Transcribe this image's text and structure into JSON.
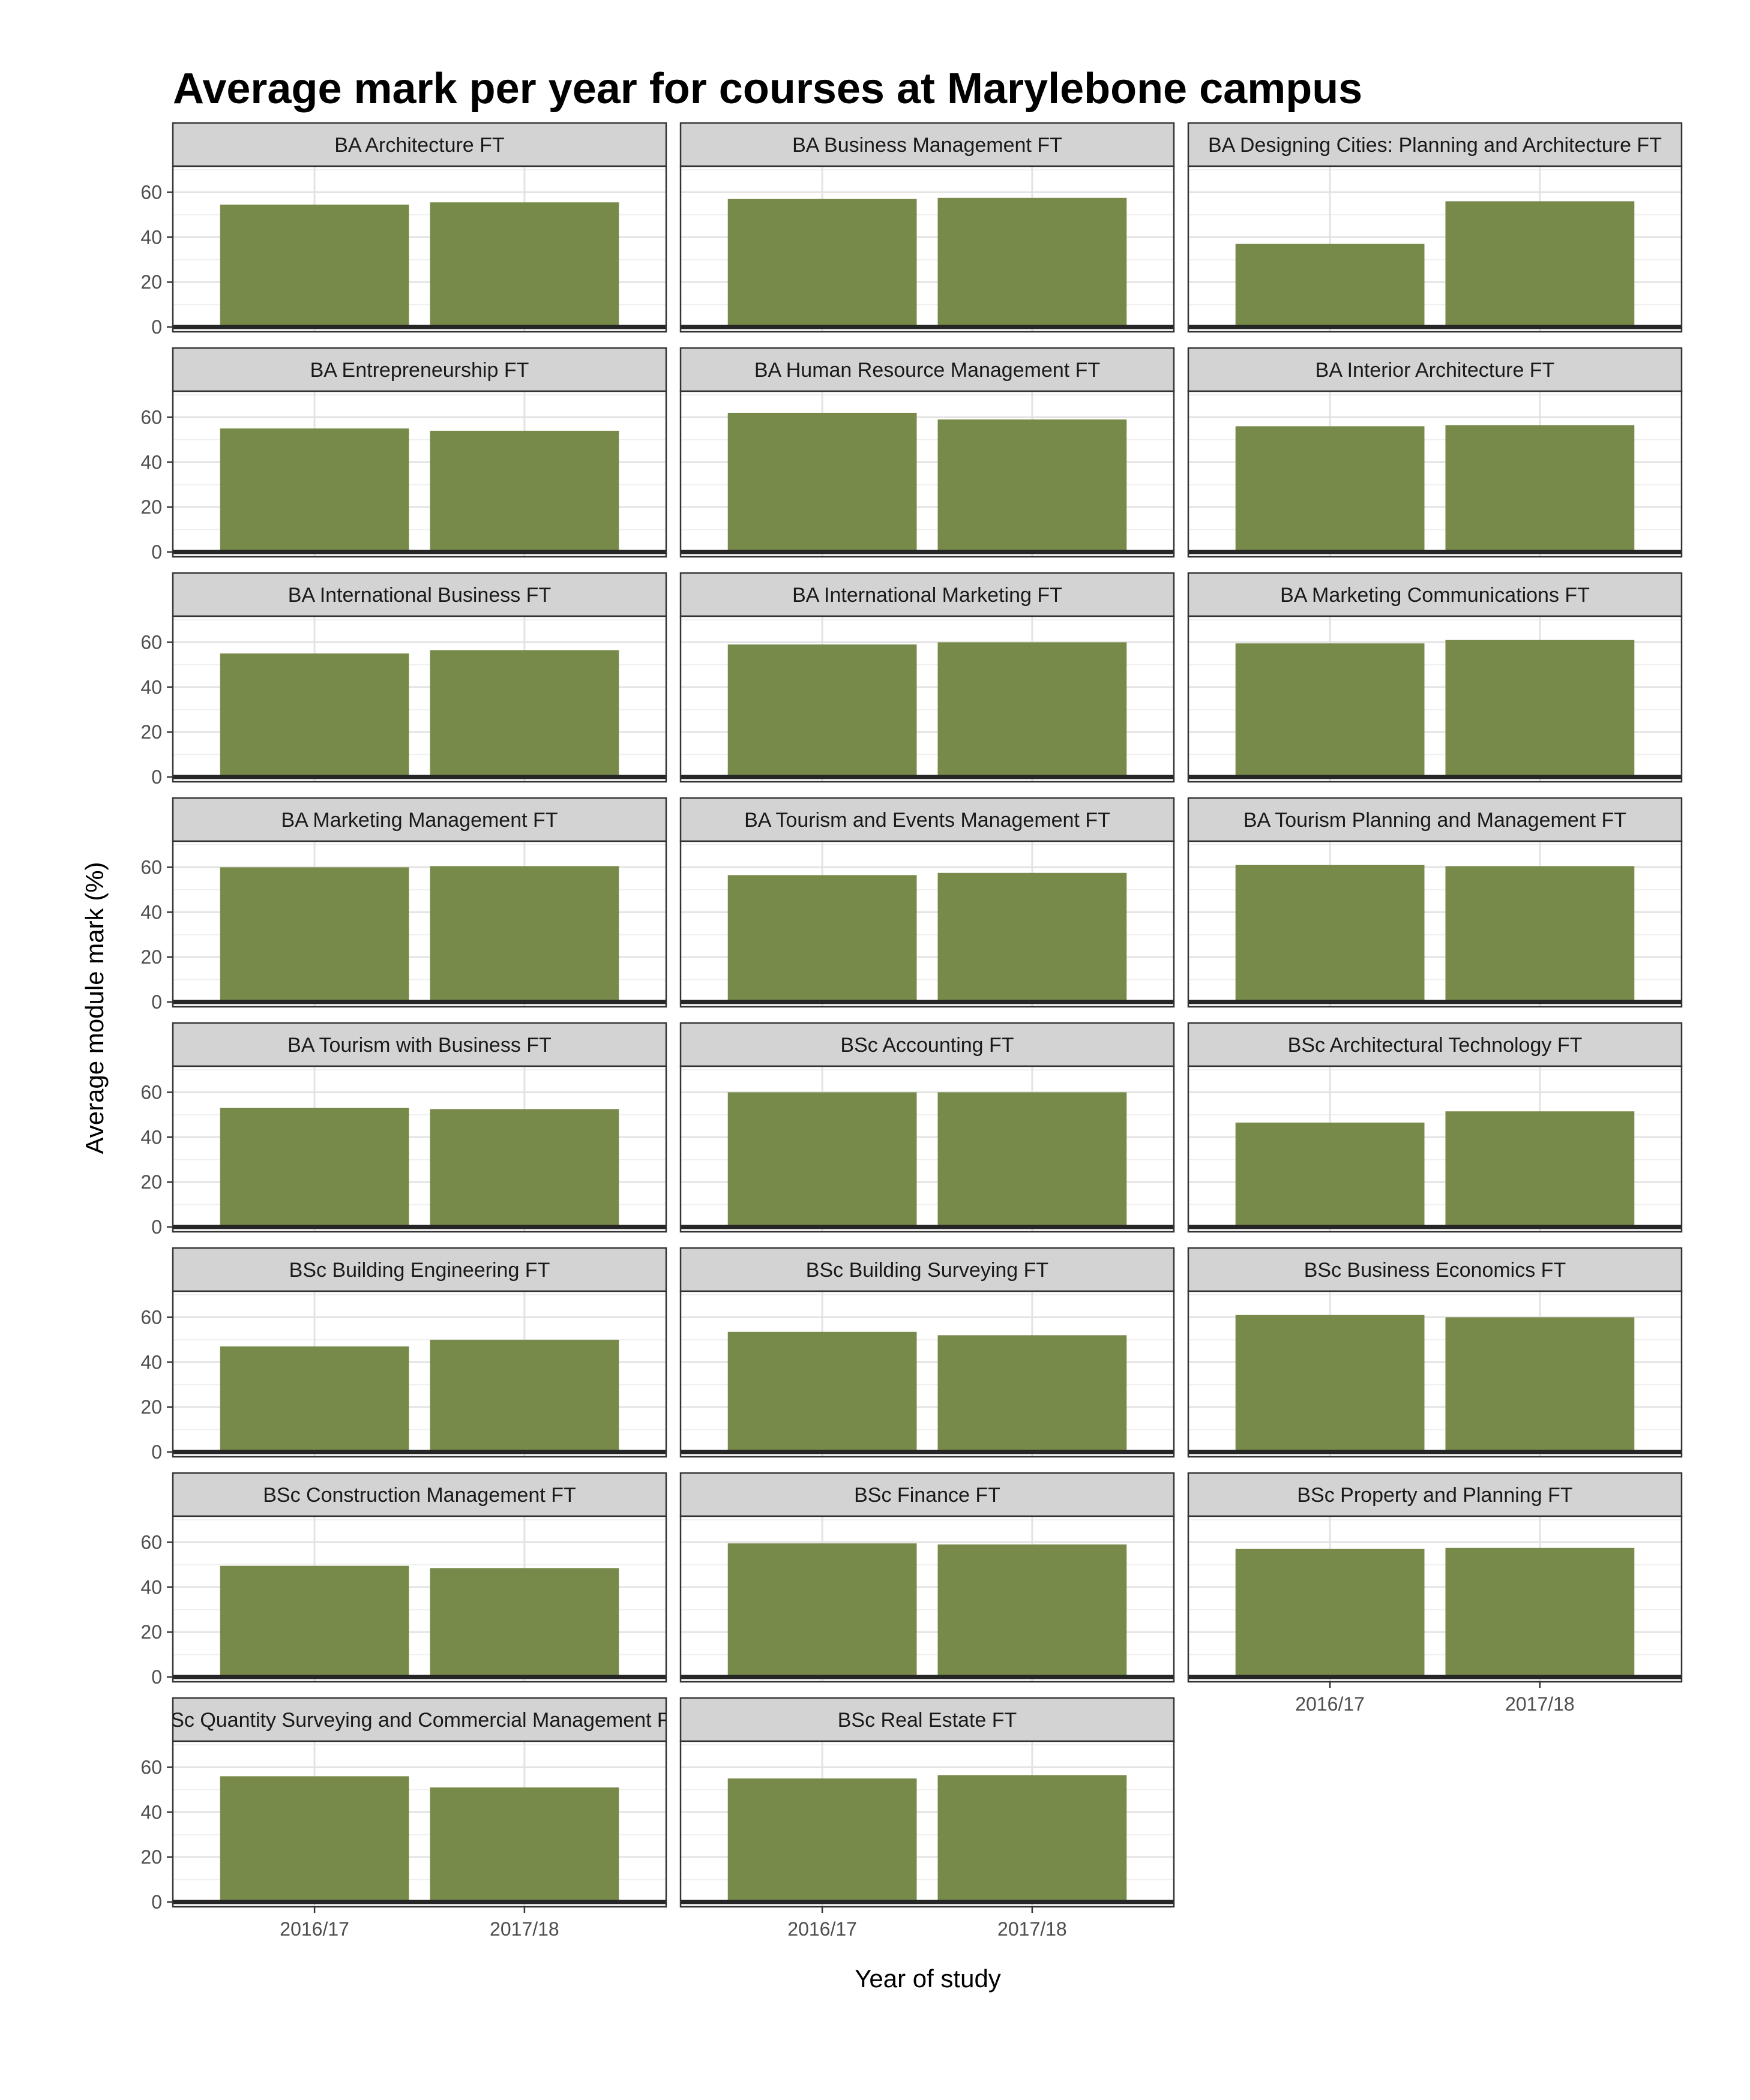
{
  "chart_data": {
    "type": "bar",
    "title": "Average mark per year for courses at Marylebone campus",
    "xlabel": "Year of study",
    "ylabel": "Average module mark (%)",
    "ylim": [
      0,
      70
    ],
    "yticks": [
      "0",
      "20",
      "40",
      "60"
    ],
    "categories": [
      "2016/17",
      "2017/18"
    ],
    "bar_color": "#778a49",
    "strip_color": "#d3d3d3",
    "grid": true,
    "facets": [
      {
        "name": "BA Architecture FT",
        "values": [
          54.5,
          55.5
        ]
      },
      {
        "name": "BA Business Management FT",
        "values": [
          57.0,
          57.5
        ]
      },
      {
        "name": "BA Designing Cities: Planning and Architecture FT",
        "values": [
          37.0,
          56.0
        ]
      },
      {
        "name": "BA Entrepreneurship FT",
        "values": [
          55.0,
          54.0
        ]
      },
      {
        "name": "BA Human Resource Management FT",
        "values": [
          62.0,
          59.0
        ]
      },
      {
        "name": "BA Interior Architecture FT",
        "values": [
          56.0,
          56.5
        ]
      },
      {
        "name": "BA International Business FT",
        "values": [
          55.0,
          56.5
        ]
      },
      {
        "name": "BA International Marketing FT",
        "values": [
          59.0,
          60.0
        ]
      },
      {
        "name": "BA Marketing Communications FT",
        "values": [
          59.5,
          61.0
        ]
      },
      {
        "name": "BA Marketing Management FT",
        "values": [
          60.0,
          60.5
        ]
      },
      {
        "name": "BA Tourism and Events Management FT",
        "values": [
          56.5,
          57.5
        ]
      },
      {
        "name": "BA Tourism Planning and Management FT",
        "values": [
          61.0,
          60.5
        ]
      },
      {
        "name": "BA Tourism with Business FT",
        "values": [
          53.0,
          52.5
        ]
      },
      {
        "name": "BSc Accounting FT",
        "values": [
          60.0,
          60.0
        ]
      },
      {
        "name": "BSc Architectural Technology FT",
        "values": [
          46.5,
          51.5
        ]
      },
      {
        "name": "BSc Building Engineering FT",
        "values": [
          47.0,
          50.0
        ]
      },
      {
        "name": "BSc Building Surveying FT",
        "values": [
          53.5,
          52.0
        ]
      },
      {
        "name": "BSc Business Economics FT",
        "values": [
          61.0,
          60.0
        ]
      },
      {
        "name": "BSc Construction Management FT",
        "values": [
          49.5,
          48.5
        ]
      },
      {
        "name": "BSc Finance FT",
        "values": [
          59.5,
          59.0
        ]
      },
      {
        "name": "BSc Property and Planning FT",
        "values": [
          57.0,
          57.5
        ]
      },
      {
        "name": "BSc Quantity Surveying and Commercial Management FT",
        "values": [
          56.0,
          51.0
        ]
      },
      {
        "name": "BSc Real Estate FT",
        "values": [
          55.0,
          56.5
        ]
      }
    ]
  }
}
